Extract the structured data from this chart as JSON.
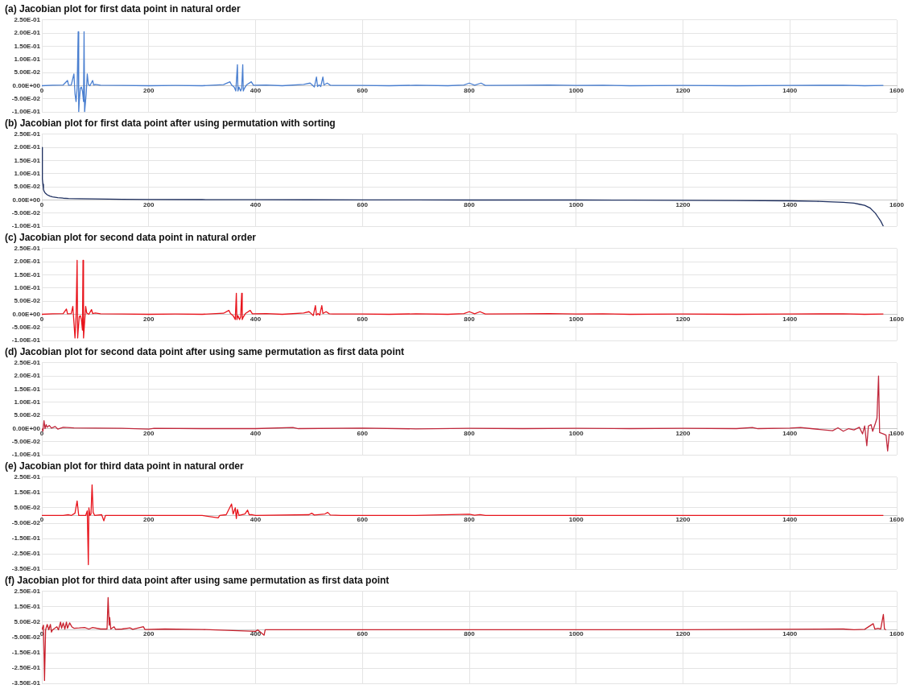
{
  "chart_data": [
    {
      "type": "line",
      "title": "(a) Jacobian plot for first data point in natural order",
      "legend": false,
      "grid": true,
      "marker": "none",
      "line_style": "solid",
      "xlim": [
        0,
        1600
      ],
      "xticks": [
        0,
        200,
        400,
        600,
        800,
        1000,
        1200,
        1400,
        1600
      ],
      "ylim": [
        -0.1,
        0.25
      ],
      "yticks": [
        {
          "value": 0.25,
          "label": "2.50E-01"
        },
        {
          "value": 0.2,
          "label": "2.00E-01"
        },
        {
          "value": 0.15,
          "label": "1.50E-01"
        },
        {
          "value": 0.1,
          "label": "1.00E-01"
        },
        {
          "value": 0.05,
          "label": "5.00E-02"
        },
        {
          "value": 0,
          "label": "0.00E+00"
        },
        {
          "value": -0.05,
          "label": "-5.00E-02"
        },
        {
          "value": -0.1,
          "label": "-1.00E-01"
        }
      ],
      "series": [
        {
          "color": "#4a7fd0",
          "x": [
            0,
            20,
            40,
            48,
            50,
            55,
            60,
            62,
            64,
            66,
            68,
            69,
            70,
            72,
            74,
            76,
            78,
            79,
            80,
            83,
            85,
            87,
            90,
            95,
            97,
            100,
            110,
            150,
            200,
            250,
            300,
            340,
            352,
            355,
            360,
            363,
            366,
            367,
            369,
            372,
            374,
            376,
            377,
            379,
            383,
            392,
            396,
            420,
            450,
            490,
            502,
            506,
            510,
            514,
            516,
            519,
            522,
            526,
            528,
            534,
            540,
            545,
            600,
            650,
            700,
            760,
            790,
            800,
            810,
            822,
            830,
            900,
            950,
            1000,
            1050,
            1100,
            1200,
            1300,
            1400,
            1500,
            1540,
            1575
          ],
          "values": [
            0,
            0.002,
            0.003,
            0.02,
            0.002,
            0.003,
            0.045,
            -0.03,
            -0.06,
            -0.01,
            0.205,
            -0.1,
            -0.06,
            -0.01,
            -0.005,
            -0.02,
            -0.06,
            0.205,
            -0.1,
            -0.03,
            0.045,
            0.005,
            0,
            0.02,
            0.003,
            0.005,
            0.002,
            0.001,
            0,
            0.001,
            0,
            0.004,
            0.015,
            0.003,
            -0.005,
            -0.02,
            0.08,
            -0.02,
            -0.005,
            -0.02,
            -0.01,
            0.08,
            -0.02,
            -0.01,
            0.003,
            0.015,
            0.002,
            0.003,
            0,
            0.005,
            0.01,
            0.003,
            -0.005,
            0.033,
            -0.003,
            0.003,
            -0.003,
            0.033,
            0.003,
            0.01,
            0.002,
            0.001,
            0.001,
            0,
            0.002,
            0,
            0.003,
            0.01,
            0.002,
            0.01,
            0.001,
            0.002,
            0.003,
            0.001,
            0.002,
            0,
            0.001,
            0,
            0.001,
            0.002,
            0,
            0.001
          ]
        }
      ]
    },
    {
      "type": "line",
      "title": "(b) Jacobian plot for first data point after using permutation with sorting",
      "legend": false,
      "grid": true,
      "marker": "none",
      "line_style": "solid",
      "xlim": [
        0,
        1600
      ],
      "xticks": [
        0,
        200,
        400,
        600,
        800,
        1000,
        1200,
        1400,
        1600
      ],
      "ylim": [
        -0.1,
        0.25
      ],
      "yticks": [
        {
          "value": 0.25,
          "label": "2.50E-01"
        },
        {
          "value": 0.2,
          "label": "2.00E-01"
        },
        {
          "value": 0.15,
          "label": "1.50E-01"
        },
        {
          "value": 0.1,
          "label": "1.00E-01"
        },
        {
          "value": 0.05,
          "label": "5.00E-02"
        },
        {
          "value": 0,
          "label": "0.00E+00"
        },
        {
          "value": -0.05,
          "label": "-5.00E-02"
        },
        {
          "value": -0.1,
          "label": "-1.00E-01"
        }
      ],
      "series": [
        {
          "color": "#1f3060",
          "x": [
            0,
            1,
            2,
            3,
            5,
            7,
            10,
            15,
            20,
            30,
            40,
            50,
            70,
            100,
            150,
            200,
            300,
            400,
            500,
            600,
            700,
            800,
            900,
            1000,
            1100,
            1200,
            1300,
            1400,
            1450,
            1480,
            1500,
            1520,
            1530,
            1540,
            1550,
            1555,
            1560,
            1565,
            1570,
            1575
          ],
          "values": [
            0.2,
            0.08,
            0.06,
            0.04,
            0.03,
            0.025,
            0.02,
            0.015,
            0.012,
            0.009,
            0.007,
            0.006,
            0.005,
            0.004,
            0.003,
            0.002,
            0.0015,
            0.001,
            0.0008,
            0.0005,
            0.0003,
            0,
            0,
            0,
            -0.0005,
            -0.001,
            -0.002,
            -0.003,
            -0.005,
            -0.007,
            -0.009,
            -0.012,
            -0.016,
            -0.02,
            -0.03,
            -0.04,
            -0.05,
            -0.065,
            -0.08,
            -0.1
          ]
        }
      ]
    },
    {
      "type": "line",
      "title": "(c) Jacobian plot for second data point in natural order",
      "legend": false,
      "grid": true,
      "marker": "none",
      "line_style": "solid",
      "xlim": [
        0,
        1600
      ],
      "xticks": [
        0,
        200,
        400,
        600,
        800,
        1000,
        1200,
        1400,
        1600
      ],
      "ylim": [
        -0.1,
        0.25
      ],
      "yticks": [
        {
          "value": 0.25,
          "label": "2.50E-01"
        },
        {
          "value": 0.2,
          "label": "2.00E-01"
        },
        {
          "value": 0.15,
          "label": "1.50E-01"
        },
        {
          "value": 0.1,
          "label": "1.00E-01"
        },
        {
          "value": 0.05,
          "label": "5.00E-02"
        },
        {
          "value": 0,
          "label": "0.00E+00"
        },
        {
          "value": -0.05,
          "label": "-5.00E-02"
        },
        {
          "value": -0.1,
          "label": "-1.00E-01"
        }
      ],
      "series": [
        {
          "color": "#e8141c",
          "x": [
            0,
            20,
            40,
            46,
            48,
            55,
            58,
            60,
            62,
            64,
            66,
            67,
            68,
            70,
            72,
            74,
            76,
            77,
            78,
            80,
            82,
            84,
            88,
            93,
            95,
            100,
            110,
            150,
            200,
            250,
            300,
            340,
            350,
            353,
            358,
            362,
            364,
            365,
            367,
            370,
            372,
            374,
            375,
            377,
            381,
            390,
            394,
            420,
            450,
            490,
            500,
            504,
            508,
            512,
            514,
            517,
            520,
            524,
            526,
            532,
            538,
            545,
            600,
            650,
            700,
            760,
            790,
            800,
            810,
            820,
            830,
            900,
            950,
            1000,
            1050,
            1100,
            1200,
            1300,
            1400,
            1500,
            1540,
            1575
          ],
          "values": [
            0,
            0.002,
            0.003,
            0.02,
            0.002,
            0.003,
            0.03,
            -0.03,
            -0.09,
            -0.01,
            0.205,
            -0.09,
            -0.06,
            -0.01,
            -0.005,
            -0.02,
            -0.06,
            0.205,
            -0.09,
            -0.03,
            0.03,
            0.005,
            0,
            0.018,
            0.003,
            0.005,
            0.002,
            0.001,
            0,
            0.001,
            0,
            0.004,
            0.015,
            0.003,
            -0.005,
            -0.02,
            0.08,
            -0.02,
            -0.005,
            -0.02,
            -0.01,
            0.08,
            -0.02,
            -0.01,
            0.003,
            0.015,
            0.002,
            0.003,
            0,
            0.005,
            0.01,
            0.003,
            -0.005,
            0.033,
            -0.003,
            0.003,
            -0.003,
            0.033,
            0.003,
            0.01,
            0.002,
            0.001,
            0.001,
            0,
            0.002,
            0,
            0.003,
            0.01,
            0.002,
            0.01,
            0.001,
            0.002,
            0.003,
            0.001,
            0.002,
            0,
            0.001,
            0,
            0.001,
            0.002,
            0,
            0.001
          ]
        }
      ]
    },
    {
      "type": "line",
      "title": "(d) Jacobian plot for second data point after using same permutation as first data point",
      "legend": false,
      "grid": true,
      "marker": "none",
      "line_style": "solid",
      "xlim": [
        0,
        1600
      ],
      "xticks": [
        0,
        200,
        400,
        600,
        800,
        1000,
        1200,
        1400,
        1600
      ],
      "ylim": [
        -0.1,
        0.25
      ],
      "yticks": [
        {
          "value": 0.25,
          "label": "2.50E-01"
        },
        {
          "value": 0.2,
          "label": "2.00E-01"
        },
        {
          "value": 0.15,
          "label": "1.50E-01"
        },
        {
          "value": 0.1,
          "label": "1.00E-01"
        },
        {
          "value": 0.05,
          "label": "5.00E-02"
        },
        {
          "value": 0,
          "label": "0.00E+00"
        },
        {
          "value": -0.05,
          "label": "-5.00E-02"
        },
        {
          "value": -0.1,
          "label": "-1.00E-01"
        }
      ],
      "series": [
        {
          "color": "#c0283c",
          "x": [
            0,
            2,
            4,
            6,
            8,
            10,
            14,
            18,
            25,
            30,
            40,
            60,
            100,
            150,
            200,
            210,
            300,
            400,
            470,
            480,
            600,
            700,
            800,
            900,
            1000,
            1100,
            1200,
            1300,
            1330,
            1340,
            1400,
            1420,
            1440,
            1480,
            1490,
            1500,
            1510,
            1520,
            1530,
            1536,
            1540,
            1544,
            1547,
            1552,
            1555,
            1560,
            1563,
            1566,
            1568,
            1575,
            1580,
            1583,
            1586
          ],
          "values": [
            0,
            -0.01,
            0.03,
            0,
            0.015,
            0.005,
            0.012,
            0.002,
            0.008,
            -0.002,
            0.005,
            0.003,
            0.002,
            0.001,
            -0.002,
            0.001,
            0,
            0,
            0.004,
            0,
            0.002,
            -0.001,
            0.001,
            0,
            0.001,
            0,
            0.001,
            0,
            0.004,
            0,
            0.002,
            0.004,
            0,
            -0.008,
            0.003,
            -0.01,
            0,
            -0.005,
            0.005,
            -0.02,
            0.01,
            -0.065,
            0.01,
            0.015,
            -0.01,
            0.02,
            0.04,
            0.2,
            -0.015,
            -0.02,
            -0.025,
            -0.085,
            -0.02
          ]
        }
      ]
    },
    {
      "type": "line",
      "title": "(e) Jacobian plot for third data point in natural order",
      "legend": false,
      "grid": true,
      "marker": "none",
      "line_style": "solid",
      "xlim": [
        0,
        1600
      ],
      "xticks": [
        0,
        200,
        400,
        600,
        800,
        1000,
        1200,
        1400,
        1600
      ],
      "ylim": [
        -0.35,
        0.25
      ],
      "yticks": [
        {
          "value": 0.25,
          "label": "2.50E-01"
        },
        {
          "value": 0.15,
          "label": "1.50E-01"
        },
        {
          "value": 0.05,
          "label": "5.00E-02"
        },
        {
          "value": -0.05,
          "label": "-5.00E-02"
        },
        {
          "value": -0.15,
          "label": "-1.50E-01"
        },
        {
          "value": -0.25,
          "label": "-2.50E-01"
        },
        {
          "value": -0.35,
          "label": "-3.50E-01"
        }
      ],
      "series": [
        {
          "color": "#e8141c",
          "x": [
            0,
            40,
            50,
            55,
            62,
            66,
            69,
            82,
            85,
            87,
            88,
            90,
            92,
            94,
            96,
            99,
            112,
            116,
            119,
            200,
            300,
            330,
            333,
            345,
            355,
            358,
            362,
            364,
            366,
            369,
            380,
            385,
            388,
            394,
            400,
            500,
            505,
            510,
            530,
            535,
            540,
            560,
            600,
            700,
            800,
            810,
            820,
            830,
            1000,
            1200,
            1400,
            1575
          ],
          "values": [
            0,
            0,
            0.005,
            0,
            0.015,
            0.095,
            0,
            0,
            0.03,
            -0.32,
            0.05,
            0,
            0.01,
            0.2,
            0.02,
            0,
            0.005,
            -0.035,
            0,
            0,
            0,
            -0.015,
            0,
            0.005,
            0.075,
            0.01,
            0.05,
            -0.02,
            0.04,
            0,
            0.01,
            0.035,
            0.005,
            0.005,
            0,
            0.005,
            0.015,
            0.003,
            0.01,
            0.02,
            0.003,
            0.001,
            0,
            0.001,
            0.008,
            0.002,
            0.006,
            0,
            0.001,
            0,
            0.001,
            0
          ]
        }
      ]
    },
    {
      "type": "line",
      "title": "(f) Jacobian plot for third data point after using same permutation as first data point",
      "legend": false,
      "grid": true,
      "marker": "none",
      "line_style": "solid",
      "xlim": [
        0,
        1600
      ],
      "xticks": [
        0,
        200,
        400,
        600,
        800,
        1000,
        1200,
        1400,
        1600
      ],
      "ylim": [
        -0.35,
        0.25
      ],
      "yticks": [
        {
          "value": 0.25,
          "label": "2.50E-01"
        },
        {
          "value": 0.15,
          "label": "1.50E-01"
        },
        {
          "value": 0.05,
          "label": "5.00E-02"
        },
        {
          "value": -0.05,
          "label": "-5.00E-02"
        },
        {
          "value": -0.15,
          "label": "-1.50E-01"
        },
        {
          "value": -0.25,
          "label": "-2.50E-01"
        },
        {
          "value": -0.35,
          "label": "-3.50E-01"
        }
      ],
      "series": [
        {
          "color": "#c8202c",
          "x": [
            0,
            3,
            5,
            7,
            10,
            13,
            16,
            18,
            20,
            28,
            31,
            35,
            37,
            40,
            43,
            46,
            48,
            52,
            56,
            60,
            70,
            80,
            88,
            95,
            110,
            117,
            122,
            124,
            126,
            127,
            129,
            135,
            138,
            150,
            165,
            170,
            190,
            193,
            230,
            300,
            400,
            404,
            416,
            418,
            500,
            800,
            1200,
            1500,
            1520,
            1540,
            1556,
            1559,
            1565,
            1570,
            1575,
            1577,
            1580
          ],
          "values": [
            0,
            0.03,
            -0.33,
            0,
            0.035,
            0,
            0.035,
            -0.015,
            0,
            0.02,
            0,
            0.05,
            0.01,
            0.045,
            0.005,
            0.05,
            0.01,
            0.045,
            0.02,
            0.01,
            0.012,
            0.015,
            0.005,
            0.015,
            0.005,
            0.005,
            0.005,
            0.21,
            0.03,
            0.08,
            0.005,
            0.02,
            0.003,
            0.005,
            0.012,
            0.003,
            0.02,
            0.002,
            0.005,
            0.002,
            -0.01,
            0,
            -0.035,
            0,
            0,
            0,
            0,
            0.005,
            0,
            0.003,
            0.04,
            0.005,
            0.01,
            0.005,
            0.1,
            0.005,
            0
          ]
        }
      ]
    }
  ]
}
